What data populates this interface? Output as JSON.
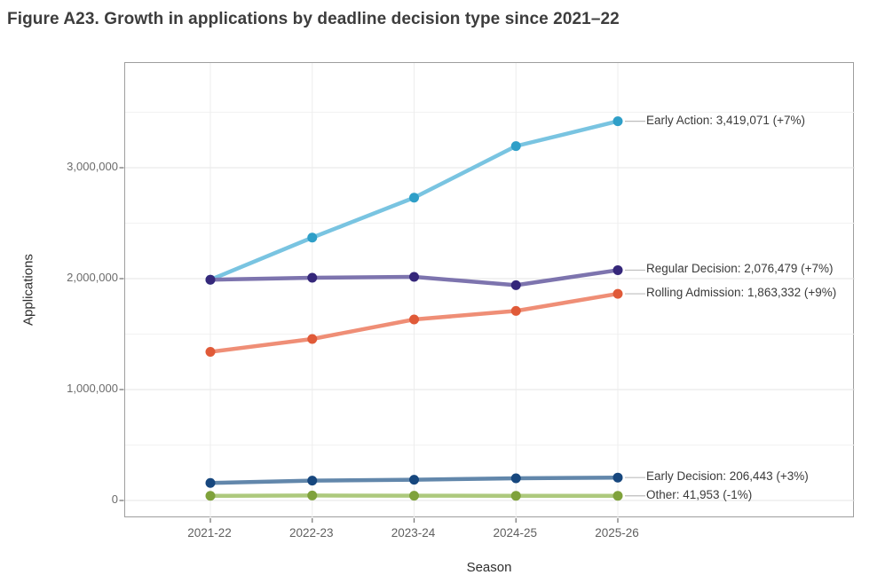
{
  "figure": {
    "title": "Figure A23. Growth in applications by deadline decision type since 2021–22"
  },
  "chart_data": {
    "type": "line",
    "title": "Figure A23. Growth in applications by deadline decision type since 2021–22",
    "xlabel": "Season",
    "ylabel": "Applications",
    "categories": [
      "2021-22",
      "2022-23",
      "2023-24",
      "2024-25",
      "2025-26"
    ],
    "y_tick_labels": [
      "0",
      "1,000,000",
      "2,000,000",
      "3,000,000"
    ],
    "y_tick_values": [
      0,
      1000000,
      2000000,
      3000000
    ],
    "y_minor_values": [
      500000,
      1500000,
      2500000,
      3500000
    ],
    "ylim": [
      0,
      3944000
    ],
    "grid": true,
    "legend_position": "right-end-labels",
    "colors": {
      "grid_minor": "#f2f2f2",
      "grid_major": "#e4e4e4",
      "panel_border": "#9e9e9e",
      "tick": "#7a7a7a",
      "leader_line": "#bdbdbd",
      "label_text": "#3a3a3a"
    },
    "series": [
      {
        "name": "Early Action",
        "values": [
          1990000,
          2370000,
          2730000,
          3195000,
          3419071
        ],
        "final_value": "3,419,071",
        "change": "+7%",
        "end_label": "Early Action: 3,419,071 (+7%)",
        "line_color": "#79c4e1",
        "marker_color": "#2f9fc8"
      },
      {
        "name": "Regular Decision",
        "values": [
          1990000,
          2008000,
          2016000,
          1941000,
          2076479
        ],
        "final_value": "2,076,479",
        "change": "+7%",
        "end_label": "Regular Decision: 2,076,479 (+7%)",
        "line_color": "#7d74ae",
        "marker_color": "#35277a"
      },
      {
        "name": "Rolling Admission",
        "values": [
          1340000,
          1456000,
          1632000,
          1709000,
          1863332
        ],
        "final_value": "1,863,332",
        "change": "+9%",
        "end_label": "Rolling Admission: 1,863,332 (+9%)",
        "line_color": "#ef8e76",
        "marker_color": "#e05a38"
      },
      {
        "name": "Early Decision",
        "values": [
          158000,
          179000,
          187000,
          200000,
          206443
        ],
        "final_value": "206,443",
        "change": "+3%",
        "end_label": "Early Decision: 206,443 (+3%)",
        "line_color": "#6287ab",
        "marker_color": "#17477e"
      },
      {
        "name": "Other",
        "values": [
          42000,
          45000,
          43000,
          42400,
          41953
        ],
        "final_value": "41,953",
        "change": "-1%",
        "end_label": "Other: 41,953 (-1%)",
        "line_color": "#adc97d",
        "marker_color": "#7fa23b"
      }
    ]
  }
}
